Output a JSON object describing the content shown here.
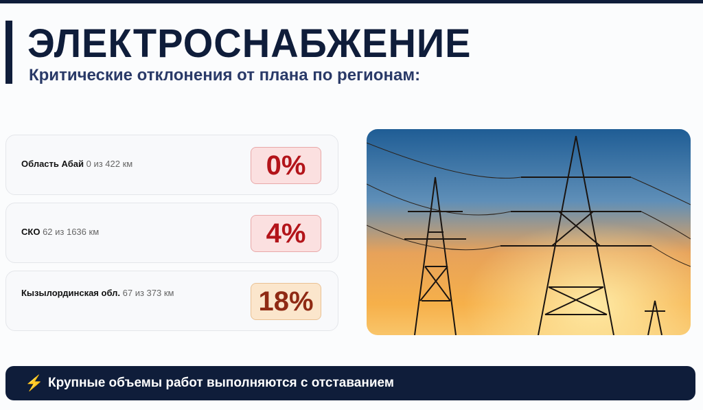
{
  "header": {
    "title": "ЭЛЕКТРОСНАБЖЕНИЕ",
    "subtitle": "Критические отклонения от плана по регионам:"
  },
  "regions": [
    {
      "name": "Область Абай",
      "detail": "0 из 422 км",
      "percent": "0%",
      "status_color": "#b3141a"
    },
    {
      "name": "СКО",
      "detail": "62 из 1636 км",
      "percent": "4%",
      "status_color": "#b3141a"
    },
    {
      "name": "Кызылординская обл.",
      "detail": "67 из 373 км",
      "percent": "18%",
      "status_color": "#8f2a14"
    }
  ],
  "photo": {
    "subject": "power-transmission-towers-at-sunset"
  },
  "footer": {
    "icon": "lightning-icon",
    "text": "Крупные объемы работ выполняются с отставанием"
  },
  "colors": {
    "navy": "#0f1d3a",
    "accent_yellow": "#f5b50a"
  }
}
